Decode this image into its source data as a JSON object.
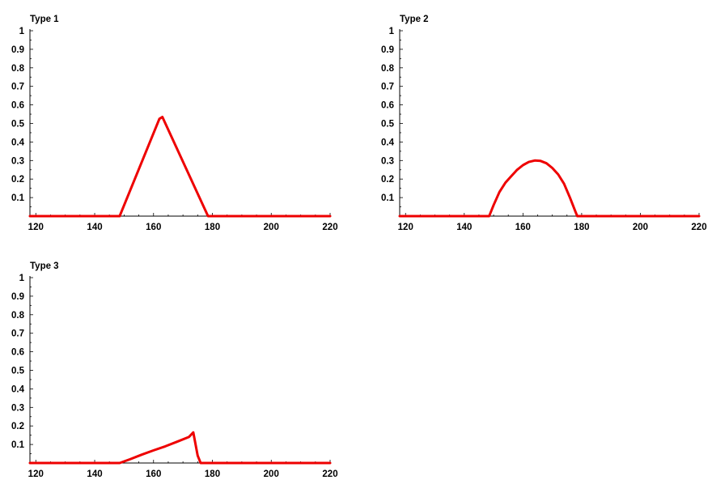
{
  "colors": {
    "curve": "#ee0000",
    "axis": "#000000"
  },
  "chart_data": [
    {
      "type": "line",
      "title": "Type 1",
      "xlabel": "",
      "ylabel": "",
      "xlim": [
        118,
        220
      ],
      "ylim": [
        0,
        1
      ],
      "xticks": [
        120,
        140,
        160,
        180,
        200,
        220
      ],
      "yticks": [
        0.1,
        0.2,
        0.3,
        0.4,
        0.5,
        0.6,
        0.7,
        0.8,
        0.9,
        1
      ],
      "series": [
        {
          "x": [
            118,
            148.5,
            162,
            163,
            178.5,
            220
          ],
          "y": [
            0,
            0,
            0.525,
            0.535,
            0,
            0
          ]
        }
      ]
    },
    {
      "type": "line",
      "title": "Type 2",
      "xlabel": "",
      "ylabel": "",
      "xlim": [
        118,
        220
      ],
      "ylim": [
        0,
        1
      ],
      "xticks": [
        120,
        140,
        160,
        180,
        200,
        220
      ],
      "yticks": [
        0.1,
        0.2,
        0.3,
        0.4,
        0.5,
        0.6,
        0.7,
        0.8,
        0.9,
        1
      ],
      "series": [
        {
          "x": [
            118,
            148.5,
            150,
            152,
            154,
            156,
            158,
            160,
            162,
            164,
            166,
            168,
            170,
            172,
            174,
            176,
            178,
            178.5,
            220
          ],
          "y": [
            0,
            0,
            0.06,
            0.13,
            0.18,
            0.215,
            0.25,
            0.275,
            0.292,
            0.3,
            0.298,
            0.285,
            0.26,
            0.225,
            0.175,
            0.1,
            0.02,
            0,
            0
          ]
        }
      ]
    },
    {
      "type": "line",
      "title": "Type 3",
      "xlabel": "",
      "ylabel": "",
      "xlim": [
        118,
        220
      ],
      "ylim": [
        0,
        1
      ],
      "xticks": [
        120,
        140,
        160,
        180,
        200,
        220
      ],
      "yticks": [
        0.1,
        0.2,
        0.3,
        0.4,
        0.5,
        0.6,
        0.7,
        0.8,
        0.9,
        1
      ],
      "series": [
        {
          "x": [
            118,
            148.5,
            152,
            156,
            160,
            164,
            168,
            172,
            173.5,
            175,
            176,
            220
          ],
          "y": [
            0,
            0,
            0.02,
            0.045,
            0.068,
            0.09,
            0.115,
            0.14,
            0.165,
            0.04,
            0,
            0
          ]
        }
      ]
    }
  ]
}
